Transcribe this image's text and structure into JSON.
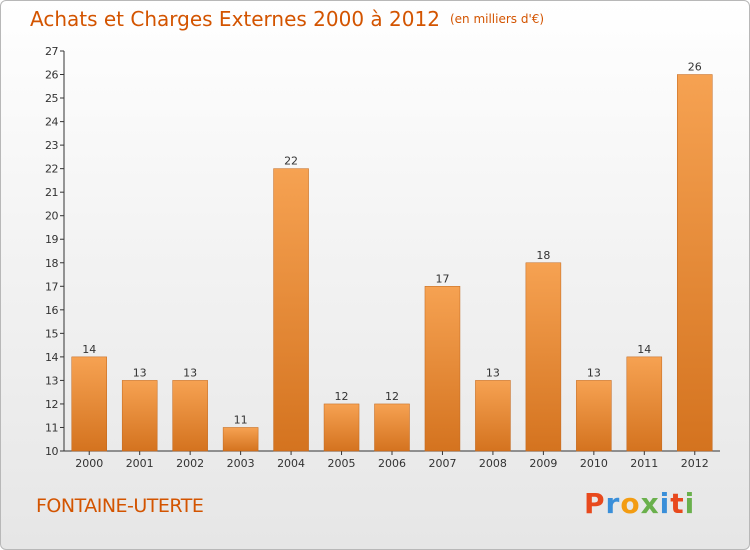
{
  "chart_data": {
    "type": "bar",
    "title": "Achats et Charges Externes 2000 à 2012",
    "unit_label": "(en milliers d'€)",
    "categories": [
      "2000",
      "2001",
      "2002",
      "2003",
      "2004",
      "2005",
      "2006",
      "2007",
      "2008",
      "2009",
      "2010",
      "2011",
      "2012"
    ],
    "values": [
      14,
      13,
      13,
      11,
      22,
      12,
      12,
      17,
      13,
      18,
      13,
      14,
      26
    ],
    "ylim": [
      10,
      27
    ],
    "yticks": [
      10,
      11,
      12,
      13,
      14,
      15,
      16,
      17,
      18,
      19,
      20,
      21,
      22,
      23,
      24,
      25,
      26,
      27
    ],
    "xlabel": "",
    "ylabel": "",
    "grid": false,
    "bar_color": "#f0913a",
    "bar_color_dark": "#cf6e1c"
  },
  "footer": {
    "place_name": "FONTAINE-UTERTE",
    "logo_text": "Proxiti"
  },
  "colors": {
    "title": "#d35400",
    "logo_letters": [
      "#e8491d",
      "#3a8fd9",
      "#f39c12",
      "#6ab04c",
      "#3a8fd9",
      "#e8491d",
      "#6ab04c"
    ]
  }
}
